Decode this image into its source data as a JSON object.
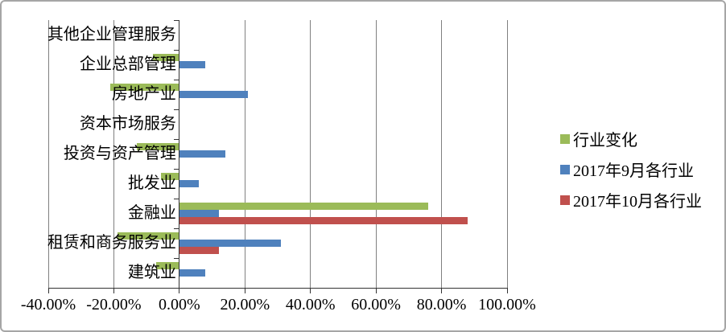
{
  "chart_data": {
    "type": "bar",
    "orientation": "horizontal",
    "title": "",
    "unit": "%",
    "categories": [
      "其他企业管理服务",
      "企业总部管理",
      "房地产业",
      "资本市场服务",
      "投资与资产管理",
      "批发业",
      "金融业",
      "租赁和商务服务业",
      "建筑业"
    ],
    "series": [
      {
        "name": "行业变化",
        "color": "#9BBB59",
        "values": [
          0,
          -8,
          -21,
          0,
          -13,
          -5.5,
          76,
          -19,
          -7
        ]
      },
      {
        "name": "2017年9月各行业",
        "color": "#4F81BD",
        "values": [
          0,
          8,
          21,
          0,
          14,
          6,
          12,
          31,
          8
        ]
      },
      {
        "name": "2017年10月各行业",
        "color": "#C0504D",
        "values": [
          0,
          0,
          0,
          0,
          0,
          0,
          88,
          12,
          0
        ]
      }
    ],
    "xlim": [
      -40,
      100
    ],
    "x_ticks": [
      "-40.00%",
      "-20.00%",
      "0.00%",
      "20.00%",
      "40.00%",
      "60.00%",
      "80.00%",
      "100.00%"
    ],
    "x_tick_values": [
      -40,
      -20,
      0,
      20,
      40,
      60,
      80,
      100
    ],
    "grid": true,
    "grid_color": "#808080",
    "axis_color": "#333333",
    "legend_position": "right"
  }
}
